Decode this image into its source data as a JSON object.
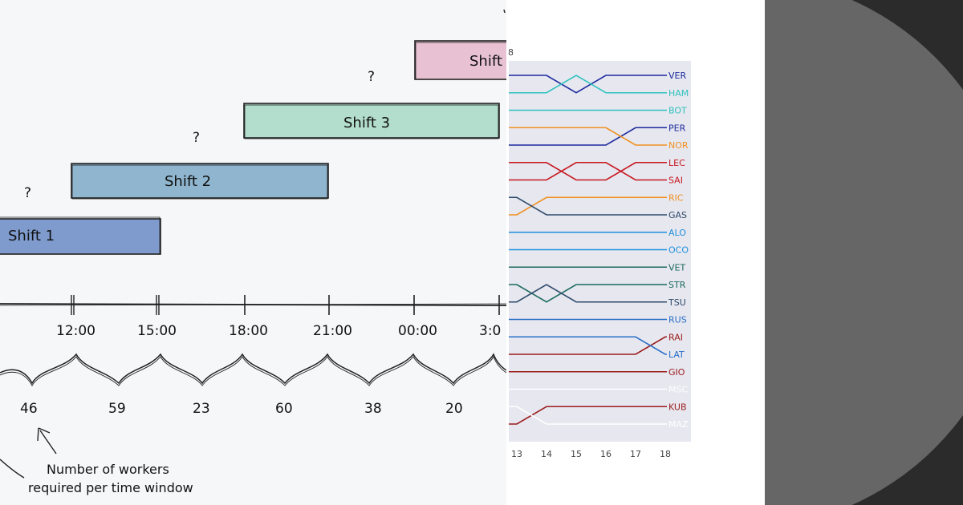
{
  "shifts": [
    {
      "label": "Shift 1",
      "fill": "#7f9bce"
    },
    {
      "label": "Shift 2",
      "fill": "#8fb5cf"
    },
    {
      "label": "Shift 3",
      "fill": "#b3dece"
    },
    {
      "label": "Shift",
      "fill": "#e8c2d3"
    }
  ],
  "question_mark": "?",
  "timeline": {
    "times": [
      "12:00",
      "15:00",
      "18:00",
      "21:00",
      "00:00",
      "3:0"
    ],
    "workers": [
      "46",
      "59",
      "23",
      "60",
      "38",
      "20"
    ]
  },
  "annotation": {
    "line1": "Number of workers",
    "line2": "required per time window"
  },
  "bump_chart": {
    "type": "line",
    "x": [
      13,
      14,
      15,
      16,
      17,
      18
    ],
    "x_tick_labels": [
      "13",
      "14",
      "15",
      "16",
      "17",
      "18"
    ],
    "top_label": "8",
    "y_reversed": true,
    "series": [
      {
        "name": "VER",
        "color": "#1c2a9e",
        "values": [
          1,
          1,
          2,
          1,
          1,
          1
        ]
      },
      {
        "name": "HAM",
        "color": "#2fc2be",
        "values": [
          2,
          2,
          1,
          2,
          2,
          2
        ]
      },
      {
        "name": "BOT",
        "color": "#2fc2be",
        "values": [
          3,
          3,
          3,
          3,
          3,
          3
        ]
      },
      {
        "name": "PER",
        "color": "#1c2a9e",
        "values": [
          5,
          5,
          5,
          5,
          4,
          4
        ]
      },
      {
        "name": "NOR",
        "color": "#f0901f",
        "values": [
          4,
          4,
          4,
          4,
          5,
          5
        ]
      },
      {
        "name": "LEC",
        "color": "#c8161e",
        "values": [
          6,
          6,
          7,
          7,
          6,
          6
        ]
      },
      {
        "name": "SAI",
        "color": "#c8161e",
        "values": [
          7,
          7,
          6,
          6,
          7,
          7
        ]
      },
      {
        "name": "RIC",
        "color": "#f0901f",
        "values": [
          9,
          8,
          8,
          8,
          8,
          8
        ]
      },
      {
        "name": "GAS",
        "color": "#2e4a6b",
        "values": [
          8,
          9,
          9,
          9,
          9,
          9
        ]
      },
      {
        "name": "ALO",
        "color": "#1f8fdc",
        "values": [
          10,
          10,
          10,
          10,
          10,
          10
        ]
      },
      {
        "name": "OCO",
        "color": "#1f8fdc",
        "values": [
          11,
          11,
          11,
          11,
          11,
          11
        ]
      },
      {
        "name": "VET",
        "color": "#1a6b5e",
        "values": [
          12,
          12,
          12,
          12,
          12,
          12
        ]
      },
      {
        "name": "STR",
        "color": "#1a6b5e",
        "values": [
          13,
          14,
          13,
          13,
          13,
          13
        ]
      },
      {
        "name": "TSU",
        "color": "#2e4a6b",
        "values": [
          14,
          13,
          14,
          14,
          14,
          14
        ]
      },
      {
        "name": "RUS",
        "color": "#2a6fc8",
        "values": [
          15,
          15,
          15,
          15,
          15,
          15
        ]
      },
      {
        "name": "RAI",
        "color": "#9b1b1b",
        "values": [
          17,
          17,
          17,
          17,
          17,
          16
        ]
      },
      {
        "name": "LAT",
        "color": "#2a6fc8",
        "values": [
          16,
          16,
          16,
          16,
          16,
          17
        ]
      },
      {
        "name": "GIO",
        "color": "#9b1b1b",
        "values": [
          18,
          18,
          18,
          18,
          18,
          18
        ]
      },
      {
        "name": "MSC",
        "color": "#ffffff",
        "values": [
          19,
          19,
          19,
          19,
          19,
          19
        ]
      },
      {
        "name": "KUB",
        "color": "#9b1b1b",
        "values": [
          21,
          20,
          20,
          20,
          20,
          20
        ]
      },
      {
        "name": "MAZ",
        "color": "#ffffff",
        "values": [
          20,
          21,
          21,
          21,
          21,
          21
        ]
      }
    ]
  }
}
